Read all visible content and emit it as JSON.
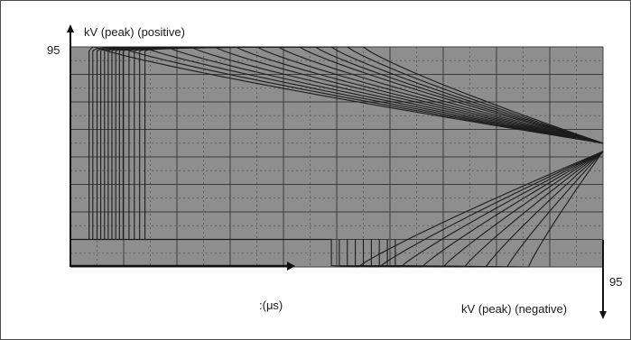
{
  "chart_data": {
    "type": "line",
    "title": "",
    "y_label_top": "kV (peak) (positive)",
    "y_label_bottom": "kV (peak) (negative)",
    "x_label": ":(μs)",
    "y_tick_top": "95",
    "y_tick_bottom": "95",
    "grid": true,
    "background_color": "#8e8e8e",
    "trace_color": "#1c1c1c",
    "divisions": {
      "x": 10,
      "y": 8
    },
    "positive_pulses": [
      {
        "start": 0.35,
        "decay_start": 0.45
      },
      {
        "start": 0.42,
        "decay_start": 0.9
      },
      {
        "start": 0.5,
        "decay_start": 1.35
      },
      {
        "start": 0.57,
        "decay_start": 1.8
      },
      {
        "start": 0.64,
        "decay_start": 2.25
      },
      {
        "start": 0.71,
        "decay_start": 2.7
      },
      {
        "start": 0.78,
        "decay_start": 3.1
      },
      {
        "start": 0.85,
        "decay_start": 3.5
      },
      {
        "start": 0.92,
        "decay_start": 3.9
      },
      {
        "start": 0.99,
        "decay_start": 4.3
      },
      {
        "start": 1.1,
        "decay_start": 4.6
      },
      {
        "start": 1.2,
        "decay_start": 4.9
      },
      {
        "start": 1.3,
        "decay_start": 5.2
      },
      {
        "start": 1.4,
        "decay_start": 5.5
      }
    ],
    "negative_pulses": [
      {
        "drop": 4.9,
        "rise_start": 5.4
      },
      {
        "drop": 5.05,
        "rise_start": 5.8
      },
      {
        "drop": 5.2,
        "rise_start": 6.2
      },
      {
        "drop": 5.35,
        "rise_start": 6.6
      },
      {
        "drop": 5.5,
        "rise_start": 7.0
      },
      {
        "drop": 5.65,
        "rise_start": 7.4
      },
      {
        "drop": 5.8,
        "rise_start": 7.8
      },
      {
        "drop": 5.95,
        "rise_start": 8.2
      },
      {
        "drop": 6.1,
        "rise_start": 8.6
      }
    ],
    "converge_level": 3.5
  }
}
